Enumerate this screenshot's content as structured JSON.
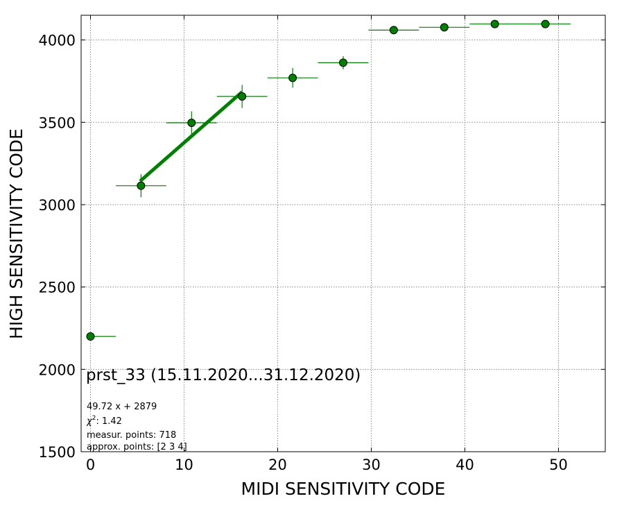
{
  "chart_data": {
    "type": "scatter",
    "xlabel": "MIDI SENSITIVITY CODE",
    "ylabel": "HIGH SENSITIVITY CODE",
    "xlim": [
      -1,
      55
    ],
    "ylim": [
      1500,
      4150
    ],
    "xticks": [
      0,
      10,
      20,
      30,
      40,
      50
    ],
    "yticks": [
      1500,
      2000,
      2500,
      3000,
      3500,
      4000
    ],
    "xtick_labels": [
      "0",
      "10",
      "20",
      "30",
      "40",
      "50"
    ],
    "ytick_labels": [
      "1500",
      "2000",
      "2500",
      "3000",
      "3500",
      "4000"
    ],
    "grid": true,
    "marker_color": "#008000",
    "points": [
      {
        "x": 0.0,
        "y": 2200,
        "xerr": [
          0,
          2.7
        ],
        "yerr": 0
      },
      {
        "x": 5.4,
        "y": 3115,
        "xerr": 2.7,
        "yerr": 70
      },
      {
        "x": 10.8,
        "y": 3497,
        "xerr": 2.7,
        "yerr": 70
      },
      {
        "x": 16.2,
        "y": 3657,
        "xerr": 2.7,
        "yerr": 70
      },
      {
        "x": 21.6,
        "y": 3770,
        "xerr": 2.7,
        "yerr": 60
      },
      {
        "x": 27.0,
        "y": 3862,
        "xerr": 2.7,
        "yerr": 40
      },
      {
        "x": 32.4,
        "y": 4060,
        "xerr": 2.7,
        "yerr": 0
      },
      {
        "x": 37.8,
        "y": 4077,
        "xerr": 2.7,
        "yerr": 0
      },
      {
        "x": 43.2,
        "y": 4097,
        "xerr": 2.7,
        "yerr": 0
      },
      {
        "x": 48.6,
        "y": 4097,
        "xerr": 2.7,
        "yerr": 0
      }
    ],
    "fit_line": {
      "slope": 49.72,
      "intercept": 2879,
      "x_from": 5.3,
      "x_to": 16.2,
      "color": "#008000"
    },
    "annotations": {
      "title": "prst_33 (15.11.2020...31.12.2020)",
      "equation": "49.72 x + 2879",
      "chi_label": "χ",
      "chi_sup": "2",
      "chi_value": ": 1.42",
      "measur_points": "measur. points: 718",
      "approx_points": "approx. points: [2 3 4]"
    }
  }
}
